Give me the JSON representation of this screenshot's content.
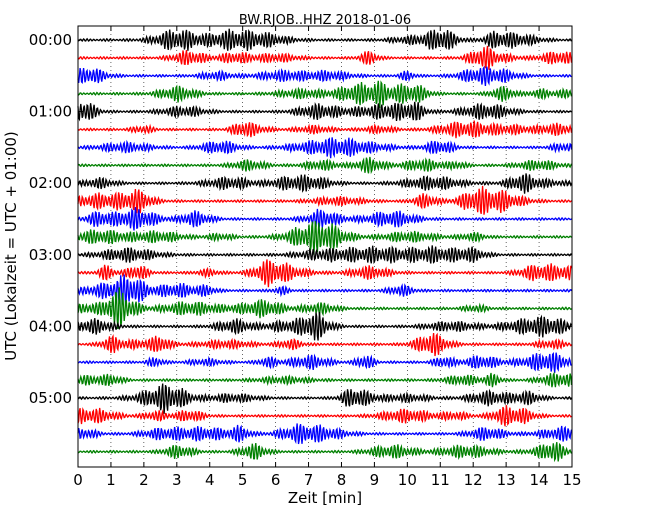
{
  "chart_data": {
    "type": "line",
    "title": "BW.RJOB..HHZ 2018-01-06",
    "xlabel": "Zeit  [min]",
    "ylabel": "UTC (Lokalzeit = UTC + 01:00)",
    "xlim": [
      0,
      15
    ],
    "x_ticks": [
      "0",
      "1",
      "2",
      "3",
      "4",
      "5",
      "6",
      "7",
      "8",
      "9",
      "10",
      "11",
      "12",
      "13",
      "14",
      "15"
    ],
    "y_tick_labels": [
      "00:00",
      "01:00",
      "02:00",
      "03:00",
      "04:00",
      "05:00"
    ],
    "grid": true,
    "trace_count": 24,
    "trace_interval_min": 15,
    "trace_colors": [
      "#000000",
      "#ff0000",
      "#0000ff",
      "#008000"
    ]
  }
}
